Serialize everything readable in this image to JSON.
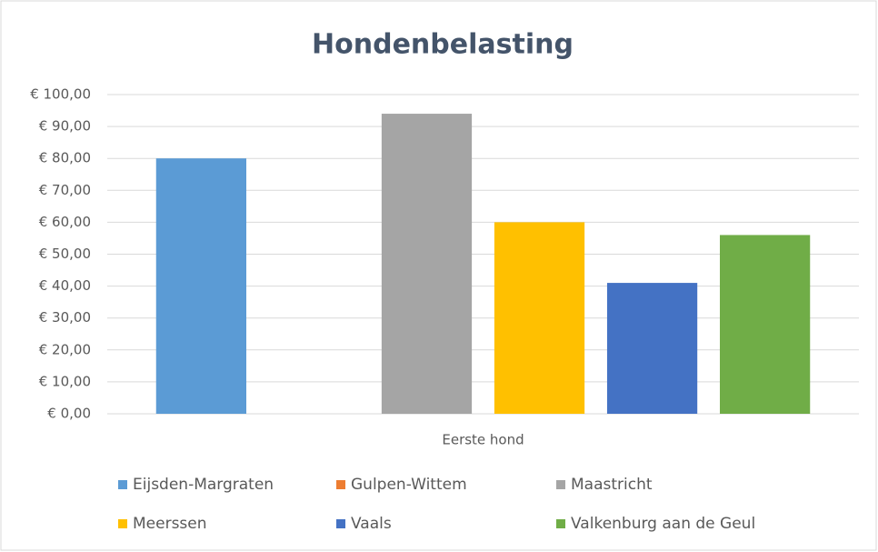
{
  "chart_data": {
    "type": "bar",
    "title": "Hondenbelasting",
    "categories": [
      "Eerste hond"
    ],
    "series": [
      {
        "name": "Eijsden-Margraten",
        "color": "#5b9bd5",
        "values": [
          80
        ]
      },
      {
        "name": "Gulpen-Wittem",
        "color": "#ed7d31",
        "values": [
          0
        ]
      },
      {
        "name": "Maastricht",
        "color": "#a5a5a5",
        "values": [
          94
        ]
      },
      {
        "name": "Meerssen",
        "color": "#ffc000",
        "values": [
          60
        ]
      },
      {
        "name": "Vaals",
        "color": "#4472c4",
        "values": [
          41
        ]
      },
      {
        "name": "Valkenburg aan de Geul",
        "color": "#70ad47",
        "values": [
          56
        ]
      }
    ],
    "ylim": [
      0,
      100
    ],
    "yticks": [
      {
        "value": 0,
        "label": "€ 0,00"
      },
      {
        "value": 10,
        "label": "€ 10,00"
      },
      {
        "value": 20,
        "label": "€ 20,00"
      },
      {
        "value": 30,
        "label": "€ 30,00"
      },
      {
        "value": 40,
        "label": "€ 40,00"
      },
      {
        "value": 50,
        "label": "€ 50,00"
      },
      {
        "value": 60,
        "label": "€ 60,00"
      },
      {
        "value": 70,
        "label": "€ 70,00"
      },
      {
        "value": 80,
        "label": "€ 80,00"
      },
      {
        "value": 90,
        "label": "€ 90,00"
      },
      {
        "value": 100,
        "label": "€ 100,00"
      }
    ],
    "grid": true,
    "legend": "bottom"
  }
}
